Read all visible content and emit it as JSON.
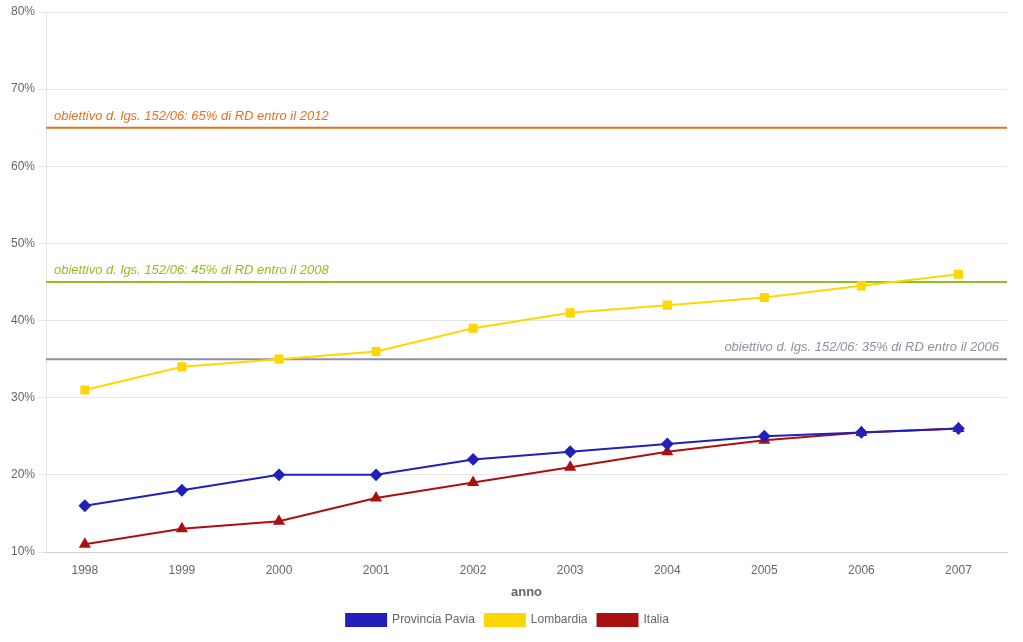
{
  "chart_data": {
    "type": "line",
    "x_label": "anno",
    "x": [
      1998,
      1999,
      2000,
      2001,
      2002,
      2003,
      2004,
      2005,
      2006,
      2007
    ],
    "series": [
      {
        "name": "Provincia Pavia",
        "color": "#2020BB",
        "marker": "diamond",
        "values": [
          0.16,
          0.18,
          0.2,
          0.2,
          0.22,
          0.23,
          0.24,
          0.25,
          0.255,
          0.26
        ]
      },
      {
        "name": "Lombardia",
        "color": "#FFD700",
        "marker": "square",
        "values": [
          0.31,
          0.34,
          0.35,
          0.36,
          0.39,
          0.41,
          0.42,
          0.43,
          0.445,
          0.46
        ]
      },
      {
        "name": "Italia",
        "color": "#AA1010",
        "marker": "triangle",
        "values": [
          0.11,
          0.13,
          0.14,
          0.17,
          0.19,
          0.21,
          0.23,
          0.245,
          0.255,
          0.26
        ]
      }
    ],
    "xlim": [
      1997.6,
      2007.5
    ],
    "xticks": [
      1998,
      1999,
      2000,
      2001,
      2002,
      2003,
      2004,
      2005,
      2006,
      2007
    ],
    "ylim": [
      0.1,
      0.8
    ],
    "yticks": [
      {
        "value": 0.1,
        "label": "10%"
      },
      {
        "value": 0.2,
        "label": "20%"
      },
      {
        "value": 0.3,
        "label": "30%"
      },
      {
        "value": 0.4,
        "label": "40%"
      },
      {
        "value": 0.5,
        "label": "50%"
      },
      {
        "value": 0.6,
        "label": "60%"
      },
      {
        "value": 0.7,
        "label": "70%"
      },
      {
        "value": 0.8,
        "label": "80%"
      }
    ],
    "annotations": [
      {
        "text": "obiettivo d. lgs. 152/06: 65% di RD entro il 2012",
        "y": 0.65,
        "color": "#E87020"
      },
      {
        "text": "obiettivo d. lgs. 152/06: 45% di RD entro il 2008",
        "y": 0.45,
        "color": "#90C020"
      },
      {
        "text": "obiettivo d. lgs. 152/06: 35% di RD entro il 2006",
        "y": 0.35,
        "color": "#9090A0"
      }
    ],
    "grid": "y",
    "legend": "bottom"
  }
}
